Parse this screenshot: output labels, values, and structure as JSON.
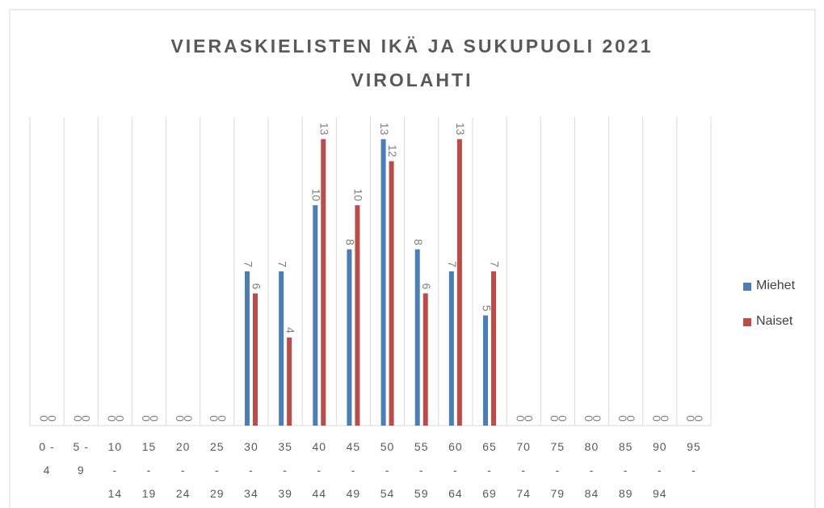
{
  "chart_data": {
    "type": "bar",
    "title": "VIERASKIELISTEN IKÄ JA SUKUPUOLI 2021 VIROLAHTI",
    "categories": [
      "0 - 4",
      "5 - 9",
      "10 - 14",
      "15 - 19",
      "20 - 24",
      "25 - 29",
      "30 - 34",
      "35 - 39",
      "40 - 44",
      "45 - 49",
      "50 - 54",
      "55 - 59",
      "60 - 64",
      "65 - 69",
      "70 - 74",
      "75 - 79",
      "80 - 84",
      "85 - 89",
      "90 - 94",
      "95 -"
    ],
    "series": [
      {
        "name": "Miehet",
        "color": "#4a7ebb",
        "values": [
          0,
          0,
          0,
          0,
          0,
          0,
          7,
          7,
          10,
          8,
          13,
          8,
          7,
          5,
          0,
          0,
          0,
          0,
          0,
          0
        ]
      },
      {
        "name": "Naiset",
        "color": "#be4b48",
        "values": [
          0,
          0,
          0,
          0,
          0,
          0,
          6,
          4,
          13,
          10,
          12,
          6,
          13,
          7,
          0,
          0,
          0,
          0,
          0,
          0
        ]
      }
    ],
    "ylim": [
      0,
      14
    ],
    "grid": true,
    "legend": "right"
  }
}
